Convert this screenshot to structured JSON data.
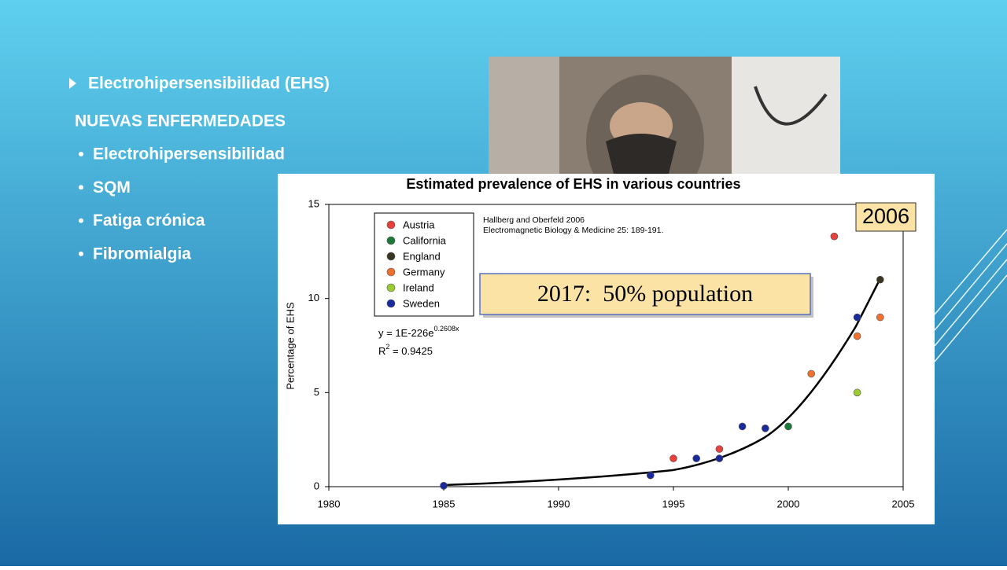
{
  "slide": {
    "title": "Electrohipersensibilidad (EHS)",
    "heading": "NUEVAS ENFERMEDADES",
    "bullets": [
      "Electrohipersensibilidad",
      "SQM",
      "Fatiga crónica",
      "Fibromialgia"
    ]
  },
  "chart_data": {
    "type": "scatter",
    "title": "Estimated prevalence of EHS in various countries",
    "ylabel": "Percentage of EHS",
    "citation": [
      "Hallberg and Oberfeld 2006",
      "Electromagnetic Biology & Medicine 25: 189-191."
    ],
    "badge": "2006",
    "callout": "2017:  50% population",
    "equation": {
      "base": "y = 1E-226e",
      "exponent": "0.2608x"
    },
    "r_squared": {
      "base": "R",
      "exponent": "2",
      "rest": " = 0.9425"
    },
    "xlim": [
      1980,
      2005
    ],
    "xticks": [
      1980,
      1985,
      1990,
      1995,
      2000,
      2005
    ],
    "ylim": [
      0,
      15
    ],
    "yticks": [
      0,
      5,
      10,
      15
    ],
    "series": [
      {
        "name": "Austria",
        "color": "#e8403a",
        "x": [
          1995,
          1997,
          2002
        ],
        "values": [
          1.5,
          2.0,
          13.3
        ]
      },
      {
        "name": "California",
        "color": "#1a7a3a",
        "x": [
          2000
        ],
        "values": [
          3.2
        ]
      },
      {
        "name": "England",
        "color": "#3a3520",
        "x": [
          2004
        ],
        "values": [
          11.0
        ]
      },
      {
        "name": "Germany",
        "color": "#f07030",
        "x": [
          2001,
          2003,
          2004
        ],
        "values": [
          6.0,
          8.0,
          9.0
        ]
      },
      {
        "name": "Ireland",
        "color": "#9acd32",
        "x": [
          2003
        ],
        "values": [
          5.0
        ]
      },
      {
        "name": "Sweden",
        "color": "#1a2a9a",
        "x": [
          1985,
          1994,
          1996,
          1997,
          1998,
          1999,
          2003
        ],
        "values": [
          0.05,
          0.6,
          1.5,
          1.5,
          3.2,
          3.1,
          9.0
        ]
      }
    ]
  }
}
